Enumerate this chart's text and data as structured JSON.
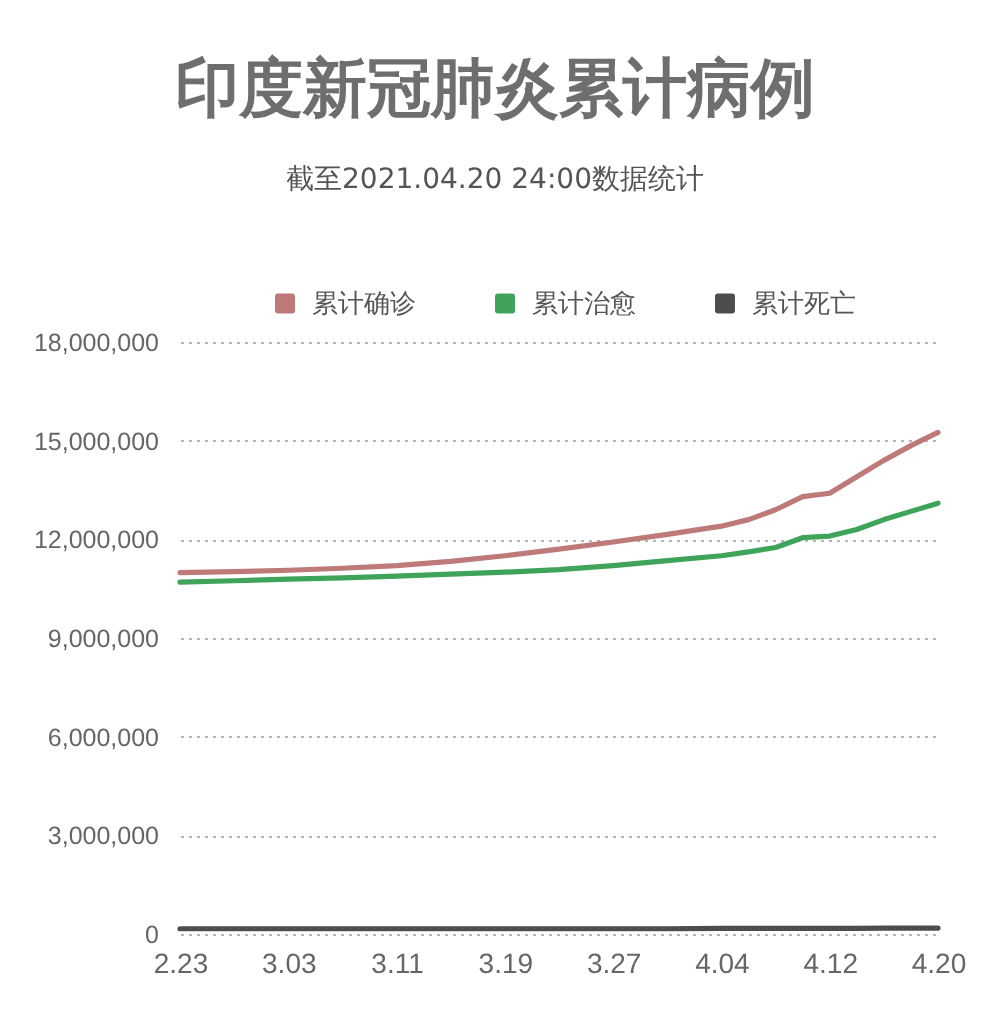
{
  "chart_data": {
    "type": "line",
    "title": "印度新冠肺炎累计病例",
    "subtitle": "截至2021.04.20 24:00数据统计",
    "x": [
      "2021-02-23",
      "2021-02-27",
      "2021-03-03",
      "2021-03-07",
      "2021-03-11",
      "2021-03-15",
      "2021-03-19",
      "2021-03-23",
      "2021-03-27",
      "2021-03-31",
      "2021-04-04",
      "2021-04-06",
      "2021-04-08",
      "2021-04-10",
      "2021-04-12",
      "2021-04-14",
      "2021-04-16",
      "2021-04-18",
      "2021-04-20"
    ],
    "series": [
      {
        "name": "累计确诊",
        "color": "#be7a78",
        "values": [
          10990000,
          11020000,
          11060000,
          11120000,
          11200000,
          11330000,
          11500000,
          11700000,
          11920000,
          12150000,
          12400000,
          12600000,
          12900000,
          13300000,
          13400000,
          13900000,
          14400000,
          14850000,
          15250000
        ]
      },
      {
        "name": "累计治愈",
        "color": "#3fa45a",
        "values": [
          10700000,
          10740000,
          10790000,
          10830000,
          10880000,
          10940000,
          11000000,
          11080000,
          11200000,
          11350000,
          11500000,
          11620000,
          11750000,
          12050000,
          12100000,
          12300000,
          12600000,
          12850000,
          13100000
        ]
      },
      {
        "name": "累计死亡",
        "color": "#4d4d4d",
        "values": [
          160000,
          160000,
          160000,
          160000,
          160000,
          160000,
          160000,
          160000,
          160000,
          160000,
          170000,
          170000,
          170000,
          170000,
          170000,
          170000,
          180000,
          180000,
          180000
        ]
      }
    ],
    "xlim": [
      "2021-02-23",
      "2021-04-20"
    ],
    "xticks": [
      {
        "value": "2021-02-23",
        "label": "2.23"
      },
      {
        "value": "2021-03-03",
        "label": "3.03"
      },
      {
        "value": "2021-03-11",
        "label": "3.11"
      },
      {
        "value": "2021-03-19",
        "label": "3.19"
      },
      {
        "value": "2021-03-27",
        "label": "3.27"
      },
      {
        "value": "2021-04-04",
        "label": "4.04"
      },
      {
        "value": "2021-04-12",
        "label": "4.12"
      },
      {
        "value": "2021-04-20",
        "label": "4.20"
      }
    ],
    "ylim": [
      0,
      18000000
    ],
    "yticks": [
      0,
      {
        "value": 3000000,
        "label": "3,000,000"
      },
      {
        "value": 6000000,
        "label": "6,000,000"
      },
      {
        "value": 9000000,
        "label": "9,000,000"
      },
      {
        "value": 12000000,
        "label": "12,000,000"
      },
      {
        "value": 15000000,
        "label": "15,000,000"
      },
      {
        "value": 18000000,
        "label": "18,000,000"
      }
    ],
    "grid": "y",
    "legend": "top",
    "marker": "none",
    "line_style": "solid"
  }
}
